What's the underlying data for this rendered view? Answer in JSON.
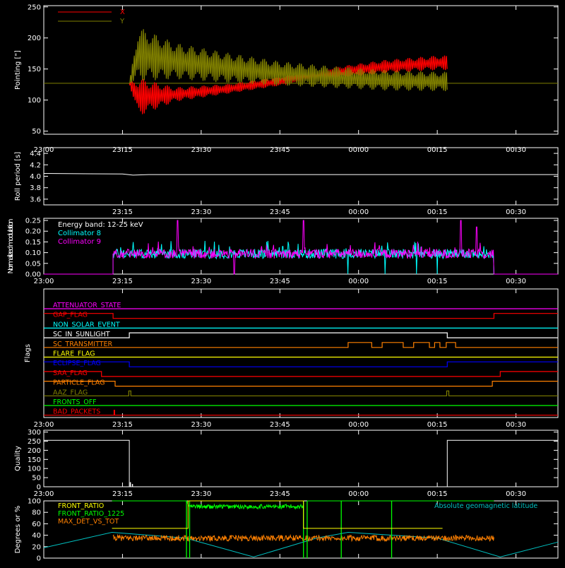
{
  "chart_data": [
    {
      "type": "line",
      "ylabel": "Pointing [\"]",
      "ylim": [
        45,
        252
      ],
      "y_ticks": [
        "50",
        "100",
        "150",
        "200",
        "250"
      ],
      "x_ticks": [
        "23:00",
        "23:15",
        "23:30",
        "23:45",
        "00:00",
        "00:15",
        "00:30"
      ],
      "xlim_minutes": [
        0,
        98
      ],
      "baseline": 127,
      "series": [
        {
          "name": "X",
          "color": "#ff0000",
          "segments": [
            {
              "t": 16.3,
              "center": 127
            },
            {
              "t": 18,
              "center": 105,
              "amp": 32
            },
            {
              "t": 25,
              "center": 109,
              "amp": 12
            },
            {
              "t": 35,
              "center": 118,
              "amp": 8
            },
            {
              "t": 45,
              "center": 130,
              "amp": 7
            },
            {
              "t": 55,
              "center": 144,
              "amp": 9
            },
            {
              "t": 65,
              "center": 154,
              "amp": 11
            },
            {
              "t": 75,
              "center": 160,
              "amp": 12
            },
            {
              "t": 76.9,
              "center": 160,
              "amp": 12
            }
          ]
        },
        {
          "name": "Y",
          "color": "#808000",
          "segments": [
            {
              "t": 16.3,
              "center": 127
            },
            {
              "t": 18,
              "center": 174,
              "amp": 45
            },
            {
              "t": 25,
              "center": 163,
              "amp": 30
            },
            {
              "t": 35,
              "center": 152,
              "amp": 25
            },
            {
              "t": 45,
              "center": 143,
              "amp": 20
            },
            {
              "t": 55,
              "center": 137,
              "amp": 18
            },
            {
              "t": 65,
              "center": 132,
              "amp": 17
            },
            {
              "t": 75,
              "center": 130,
              "amp": 16
            },
            {
              "t": 76.9,
              "center": 130,
              "amp": 16
            }
          ]
        }
      ]
    },
    {
      "type": "line",
      "ylabel": "Roll period [s]",
      "ylim": [
        3.5,
        4.5
      ],
      "y_ticks": [
        "3.6",
        "3.8",
        "4.0",
        "4.2",
        "4.4"
      ],
      "x_ticks": [
        "23:15",
        "23:30",
        "23:45",
        "00:00",
        "00:15",
        "00:30"
      ],
      "series": [
        {
          "name": "",
          "color": "#ffffff",
          "points": [
            [
              0,
              4.05
            ],
            [
              15,
              4.04
            ],
            [
              17,
              4.02
            ],
            [
              20,
              4.03
            ],
            [
              98,
              4.03
            ]
          ]
        }
      ]
    },
    {
      "type": "line",
      "ylabel": "Normalized modulation",
      "ylim": [
        0,
        0.26
      ],
      "y_ticks": [
        "0.00",
        "0.05",
        "0.10",
        "0.15",
        "0.20",
        "0.25"
      ],
      "x_ticks": [
        "23:00",
        "23:15",
        "23:30",
        "23:45",
        "00:00",
        "00:15",
        "00:30"
      ],
      "annotation": "Energy band: 12-25 keV",
      "active_range_minutes": [
        13.2,
        85.8
      ],
      "series": [
        {
          "name": "Collimator 8",
          "color": "#00ffff",
          "level": 0.095,
          "dips_to_zero": [
            58,
            65,
            71,
            75
          ]
        },
        {
          "name": "Collimator 9",
          "color": "#ff00ff",
          "level": 0.095,
          "dips_to_zero": [
            36.3
          ],
          "spikes": [
            [
              25.5,
              0.25
            ],
            [
              49.5,
              0.25
            ],
            [
              79.5,
              0.25
            ],
            [
              82.5,
              0.22
            ]
          ]
        }
      ]
    },
    {
      "type": "line",
      "ylabel": "Flags",
      "x_ticks": [
        "23:00",
        "23:15",
        "23:30",
        "23:45",
        "00:00",
        "00:15",
        "00:30"
      ],
      "series": [
        {
          "name": "ATTENUATOR_STATE",
          "color": "#ff00ff",
          "transitions": [],
          "init": 0
        },
        {
          "name": "GAP_FLAG",
          "color": "#ff0000",
          "transitions": [
            13.2,
            85.8
          ],
          "init": 1
        },
        {
          "name": "NON_SOLAR_EVENT",
          "color": "#00ffff",
          "transitions": [],
          "init": 0
        },
        {
          "name": "SC_IN_SUNLIGHT",
          "color": "#ffffff",
          "transitions": [
            16.3,
            76.9
          ],
          "init": 0
        },
        {
          "name": "SC_TRANSMITTER",
          "color": "#ff8000",
          "transitions": [
            58,
            62.5,
            64.5,
            68.5,
            70.5,
            73.5,
            74.5,
            75.5,
            76.7,
            78.5
          ],
          "init": 0
        },
        {
          "name": "FLARE_FLAG",
          "color": "#ffff00",
          "transitions": [],
          "init": 0
        },
        {
          "name": "ECLIPSE_FLAG",
          "color": "#0000ff",
          "transitions": [
            16.3,
            76.9
          ],
          "init": 1
        },
        {
          "name": "SAA_FLAG",
          "color": "#ff0000",
          "transitions": [
            11,
            87
          ],
          "init": 1
        },
        {
          "name": "PARTICLE_FLAG",
          "color": "#ff8000",
          "transitions": [
            13.6,
            85.5
          ],
          "init": 1
        },
        {
          "name": "AAZ_FLAG",
          "color": "#808000",
          "transitions": [
            16.2,
            16.6,
            76.8,
            77.2
          ],
          "init": 0
        },
        {
          "name": "FRONTS_OFF",
          "color": "#00ff00",
          "transitions": [],
          "init": 0
        },
        {
          "name": "BAD_PACKETS",
          "color": "#ff0000",
          "transitions": [
            13.4,
            13.5
          ],
          "init": 0
        }
      ]
    },
    {
      "type": "line",
      "ylabel": "Quality",
      "ylim": [
        0,
        310
      ],
      "y_ticks": [
        "0",
        "50",
        "100",
        "150",
        "200",
        "250",
        "300"
      ],
      "x_ticks": [
        "23:00",
        "23:15",
        "23:30",
        "23:45",
        "00:00",
        "00:15",
        "00:30"
      ],
      "series": [
        {
          "name": "",
          "color": "#ffffff",
          "points": [
            [
              0,
              255
            ],
            [
              16.3,
              255
            ],
            [
              16.3,
              0
            ],
            [
              76.9,
              0
            ],
            [
              76.9,
              255
            ],
            [
              98,
              255
            ]
          ]
        }
      ]
    },
    {
      "type": "line",
      "ylabel": "Degrees or %",
      "ylim": [
        0,
        100
      ],
      "y_ticks": [
        "0",
        "20",
        "40",
        "60",
        "80",
        "100"
      ],
      "annotation": "Absolute geomagnetic latitude",
      "series": [
        {
          "name": "FRONT_RATIO",
          "color": "#ffff00",
          "segments": [
            [
              13,
              52
            ],
            [
              27.5,
              52
            ],
            [
              27.5,
              100
            ],
            [
              49.5,
              100
            ],
            [
              49.5,
              52
            ],
            [
              76,
              52
            ]
          ]
        },
        {
          "name": "FRONT_RATIO_1225",
          "color": "#00ff00",
          "level": 90,
          "verticals": [
            27.2,
            27.8,
            49.5,
            50.2,
            56.7,
            66.3
          ]
        },
        {
          "name": "MAX_DET_VS_TOT",
          "color": "#ff8000",
          "level": 35,
          "range": [
            13.2,
            85.8
          ]
        },
        {
          "name": "Absolute geomagnetic latitude",
          "color": "#00c0c0",
          "points": [
            [
              0,
              18
            ],
            [
              13,
              45
            ],
            [
              27,
              35
            ],
            [
              40,
              2
            ],
            [
              52,
              35
            ],
            [
              58,
              45
            ],
            [
              75,
              35
            ],
            [
              87,
              2
            ],
            [
              98,
              28
            ]
          ]
        }
      ]
    }
  ]
}
